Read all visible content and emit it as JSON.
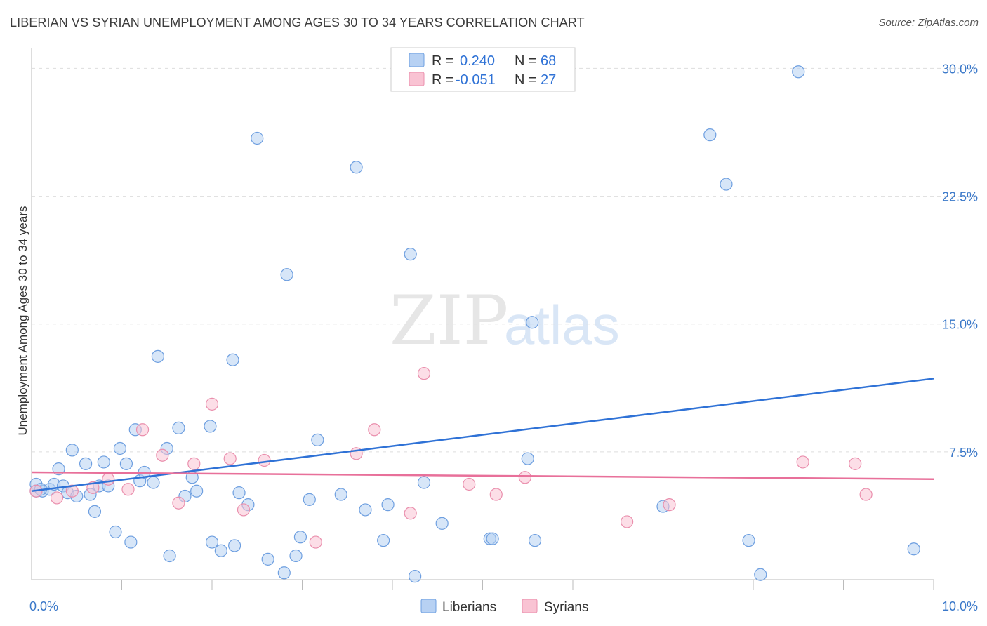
{
  "header": {
    "title": "LIBERIAN VS SYRIAN UNEMPLOYMENT AMONG AGES 30 TO 34 YEARS CORRELATION CHART",
    "source": "Source: ZipAtlas.com"
  },
  "watermark": {
    "zip": "ZIP",
    "atlas": "atlas"
  },
  "colors": {
    "liberian_fill": "#b7d1f3",
    "liberian_stroke": "#6e9fe0",
    "liberian_line": "#2f72d6",
    "syrian_fill": "#f9c3d3",
    "syrian_stroke": "#ea8fad",
    "syrian_line": "#e8709a",
    "tick_text": "#3a78c9",
    "grid": "#dddddd"
  },
  "legend": {
    "r_label": "R =",
    "n_label": "N =",
    "rows": [
      {
        "series": "liberian",
        "r": "0.240",
        "n": "68"
      },
      {
        "series": "syrian",
        "r": "-0.051",
        "n": "27"
      }
    ]
  },
  "bottom_legend": {
    "liberian": "Liberians",
    "syrian": "Syrians"
  },
  "chart_data": {
    "type": "scatter",
    "title": "LIBERIAN VS SYRIAN UNEMPLOYMENT AMONG AGES 30 TO 34 YEARS CORRELATION CHART",
    "xlabel": "",
    "ylabel": "Unemployment Among Ages 30 to 34 years",
    "xlim": [
      0,
      10
    ],
    "ylim": [
      0,
      30.8
    ],
    "x_tick_labels": [
      {
        "value": 0,
        "label": "0.0%"
      },
      {
        "value": 10,
        "label": "10.0%"
      }
    ],
    "x_minor_ticks": [
      1,
      2,
      3,
      4,
      5,
      6,
      7,
      8,
      9,
      10
    ],
    "y_ticks": [
      {
        "value": 7.5,
        "label": "7.5%"
      },
      {
        "value": 15,
        "label": "15.0%"
      },
      {
        "value": 22.5,
        "label": "22.5%"
      },
      {
        "value": 30,
        "label": "30.0%"
      }
    ],
    "grid": true,
    "series": [
      {
        "name": "Liberians",
        "color": "#6e9fe0",
        "trend": {
          "x": [
            0,
            10
          ],
          "y": [
            5.2,
            11.8
          ]
        },
        "points": [
          [
            0.05,
            5.6
          ],
          [
            0.12,
            5.2
          ],
          [
            0.2,
            5.3
          ],
          [
            0.25,
            5.6
          ],
          [
            0.3,
            6.5
          ],
          [
            0.35,
            5.5
          ],
          [
            0.4,
            5.1
          ],
          [
            0.45,
            7.6
          ],
          [
            0.5,
            4.9
          ],
          [
            0.6,
            6.8
          ],
          [
            0.65,
            5.0
          ],
          [
            0.7,
            4.0
          ],
          [
            0.75,
            5.5
          ],
          [
            0.8,
            6.9
          ],
          [
            0.85,
            5.5
          ],
          [
            0.93,
            2.8
          ],
          [
            0.98,
            7.7
          ],
          [
            1.05,
            6.8
          ],
          [
            1.1,
            2.2
          ],
          [
            1.15,
            8.8
          ],
          [
            1.2,
            5.8
          ],
          [
            1.25,
            6.3
          ],
          [
            1.35,
            5.7
          ],
          [
            1.4,
            13.1
          ],
          [
            1.5,
            7.7
          ],
          [
            1.53,
            1.4
          ],
          [
            1.63,
            8.9
          ],
          [
            1.7,
            4.9
          ],
          [
            1.78,
            6.0
          ],
          [
            1.83,
            5.2
          ],
          [
            1.98,
            9.0
          ],
          [
            2.0,
            2.2
          ],
          [
            2.1,
            1.7
          ],
          [
            2.23,
            12.9
          ],
          [
            2.25,
            2.0
          ],
          [
            2.3,
            5.1
          ],
          [
            2.4,
            4.4
          ],
          [
            2.5,
            25.9
          ],
          [
            2.62,
            1.2
          ],
          [
            2.8,
            0.4
          ],
          [
            2.83,
            17.9
          ],
          [
            2.93,
            1.4
          ],
          [
            2.98,
            2.5
          ],
          [
            3.08,
            4.7
          ],
          [
            3.17,
            8.2
          ],
          [
            3.43,
            5.0
          ],
          [
            3.6,
            24.2
          ],
          [
            3.7,
            4.1
          ],
          [
            3.9,
            2.3
          ],
          [
            3.95,
            4.4
          ],
          [
            4.2,
            19.1
          ],
          [
            4.25,
            0.2
          ],
          [
            4.35,
            5.7
          ],
          [
            4.55,
            3.3
          ],
          [
            5.08,
            2.4
          ],
          [
            5.11,
            2.4
          ],
          [
            5.5,
            7.1
          ],
          [
            5.55,
            15.1
          ],
          [
            5.58,
            2.3
          ],
          [
            7.0,
            4.3
          ],
          [
            7.52,
            26.1
          ],
          [
            7.7,
            23.2
          ],
          [
            7.95,
            2.3
          ],
          [
            8.08,
            0.3
          ],
          [
            8.5,
            29.8
          ],
          [
            9.78,
            1.8
          ],
          [
            0.05,
            5.2
          ],
          [
            0.1,
            5.3
          ]
        ]
      },
      {
        "name": "Syrians",
        "color": "#ea8fad",
        "trend": {
          "x": [
            0,
            10
          ],
          "y": [
            6.3,
            5.9
          ]
        },
        "points": [
          [
            0.05,
            5.2
          ],
          [
            0.28,
            4.8
          ],
          [
            0.45,
            5.2
          ],
          [
            0.68,
            5.4
          ],
          [
            0.85,
            5.9
          ],
          [
            1.07,
            5.3
          ],
          [
            1.23,
            8.8
          ],
          [
            1.45,
            7.3
          ],
          [
            1.63,
            4.5
          ],
          [
            1.8,
            6.8
          ],
          [
            2.0,
            10.3
          ],
          [
            2.2,
            7.1
          ],
          [
            2.35,
            4.1
          ],
          [
            2.58,
            7.0
          ],
          [
            3.15,
            2.2
          ],
          [
            3.6,
            7.4
          ],
          [
            3.8,
            8.8
          ],
          [
            4.2,
            3.9
          ],
          [
            4.35,
            12.1
          ],
          [
            4.85,
            5.6
          ],
          [
            5.15,
            5.0
          ],
          [
            5.47,
            6.0
          ],
          [
            6.6,
            3.4
          ],
          [
            7.07,
            4.4
          ],
          [
            8.55,
            6.9
          ],
          [
            9.13,
            6.8
          ],
          [
            9.25,
            5.0
          ]
        ]
      }
    ]
  }
}
